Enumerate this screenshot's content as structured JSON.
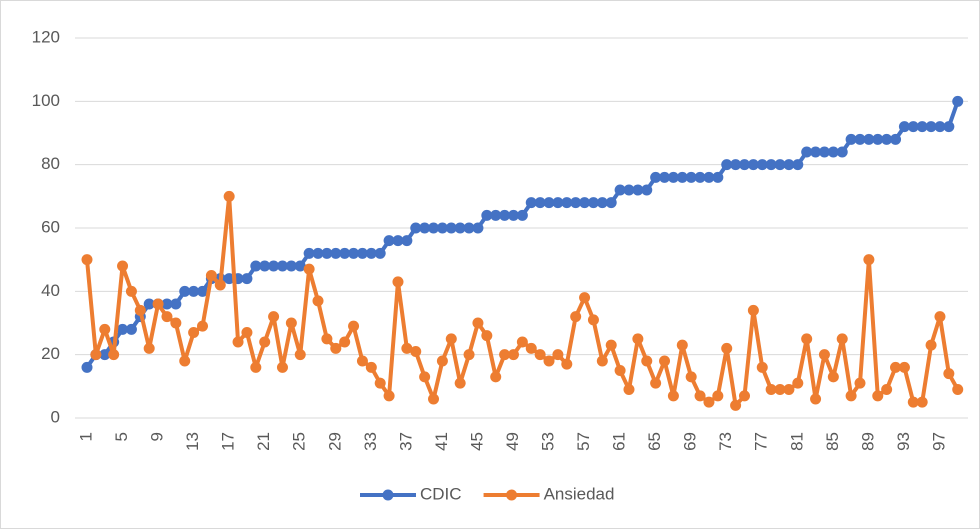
{
  "chart_data": {
    "type": "line",
    "categories": [
      "1",
      null,
      null,
      null,
      "5",
      null,
      null,
      null,
      "9",
      null,
      null,
      null,
      "13",
      null,
      null,
      null,
      "17",
      null,
      null,
      null,
      "21",
      null,
      null,
      null,
      "25",
      null,
      null,
      null,
      "29",
      null,
      null,
      null,
      "33",
      null,
      null,
      null,
      "37",
      null,
      null,
      null,
      "41",
      null,
      null,
      null,
      "45",
      null,
      null,
      null,
      "49",
      null,
      null,
      null,
      "53",
      null,
      null,
      null,
      "57",
      null,
      null,
      null,
      "61",
      null,
      null,
      null,
      "65",
      null,
      null,
      null,
      "69",
      null,
      null,
      null,
      "73",
      null,
      null,
      null,
      "77",
      null,
      null,
      null,
      "81",
      null,
      null,
      null,
      "85",
      null,
      null,
      null,
      "89",
      null,
      null,
      null,
      "93",
      null,
      null,
      null,
      "97",
      null,
      null
    ],
    "series": [
      {
        "name": "CDIC",
        "color": "#4472c4",
        "values": [
          16,
          20,
          20,
          24,
          28,
          28,
          32,
          36,
          36,
          36,
          36,
          40,
          40,
          40,
          44,
          44,
          44,
          44,
          44,
          48,
          48,
          48,
          48,
          48,
          48,
          52,
          52,
          52,
          52,
          52,
          52,
          52,
          52,
          52,
          56,
          56,
          56,
          60,
          60,
          60,
          60,
          60,
          60,
          60,
          60,
          64,
          64,
          64,
          64,
          64,
          68,
          68,
          68,
          68,
          68,
          68,
          68,
          68,
          68,
          68,
          72,
          72,
          72,
          72,
          76,
          76,
          76,
          76,
          76,
          76,
          76,
          76,
          80,
          80,
          80,
          80,
          80,
          80,
          80,
          80,
          80,
          84,
          84,
          84,
          84,
          84,
          88,
          88,
          88,
          88,
          88,
          88,
          92,
          92,
          92,
          92,
          92,
          92,
          100
        ]
      },
      {
        "name": "Ansiedad",
        "color": "#ed7d31",
        "values": [
          50,
          20,
          28,
          20,
          48,
          40,
          34,
          22,
          36,
          32,
          30,
          18,
          27,
          29,
          45,
          42,
          70,
          24,
          27,
          16,
          24,
          32,
          16,
          30,
          20,
          47,
          37,
          25,
          22,
          24,
          29,
          18,
          16,
          11,
          7,
          43,
          22,
          21,
          13,
          6,
          18,
          25,
          11,
          20,
          30,
          26,
          13,
          20,
          20,
          24,
          22,
          20,
          18,
          20,
          17,
          32,
          38,
          31,
          18,
          23,
          15,
          9,
          25,
          18,
          11,
          18,
          7,
          23,
          13,
          7,
          5,
          7,
          22,
          4,
          7,
          34,
          16,
          9,
          9,
          9,
          11,
          25,
          6,
          20,
          13,
          25,
          7,
          11,
          50,
          7,
          9,
          16,
          16,
          5,
          5,
          23,
          32,
          14,
          9
        ]
      }
    ],
    "ylim": [
      0,
      120
    ],
    "yticks": [
      0,
      20,
      40,
      60,
      80,
      100,
      120
    ],
    "grid": true,
    "legend": "bottom"
  }
}
